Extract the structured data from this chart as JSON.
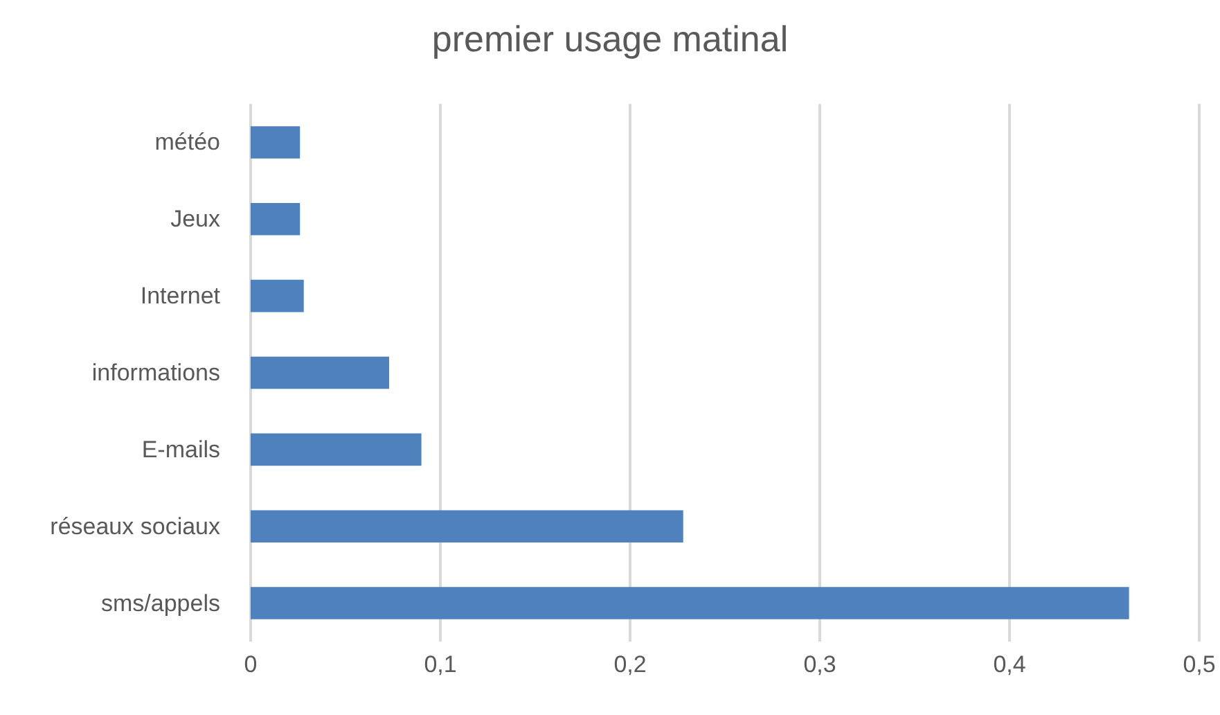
{
  "chart_data": {
    "type": "bar",
    "orientation": "horizontal",
    "title": "premier usage matinal",
    "categories": [
      "météo",
      "Jeux",
      "Internet",
      "informations",
      "E-mails",
      "réseaux sociaux",
      "sms/appels"
    ],
    "values": [
      0.026,
      0.026,
      0.028,
      0.073,
      0.09,
      0.228,
      0.463
    ],
    "color": "#4f81bd",
    "xlim": [
      0,
      0.5
    ],
    "xticks": [
      0,
      {
        "value": 0.1,
        "label": "0,1"
      },
      {
        "value": 0.2,
        "label": "0,2"
      },
      {
        "value": 0.3,
        "label": "0,3"
      },
      {
        "value": 0.4,
        "label": "0,4"
      },
      {
        "value": 0.5,
        "label": "0,5"
      }
    ],
    "grid": "x"
  }
}
